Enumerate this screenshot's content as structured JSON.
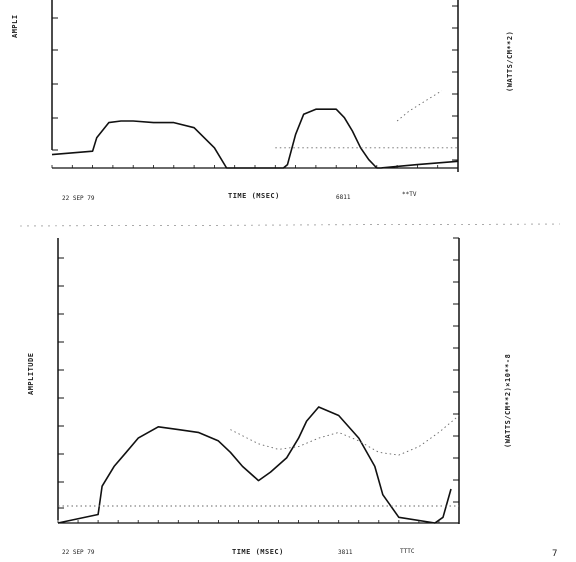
{
  "page_number": "7",
  "chart_data": [
    {
      "type": "line",
      "ylabel": "AMPLI",
      "ylabel_right": "(WATTS/CM**2)",
      "xlabel": "TIME (MSEC)",
      "date_label": "22 SEP 79",
      "extra_labels": [
        "6811",
        "**TV"
      ],
      "grid": false,
      "series": [
        {
          "style": "solid",
          "x": [
            0.0,
            0.1,
            0.11,
            0.14,
            0.17,
            0.2,
            0.25,
            0.3,
            0.35,
            0.4,
            0.43,
            0.46,
            0.5,
            0.57,
            0.58,
            0.6,
            0.62,
            0.65,
            0.7,
            0.72,
            0.74,
            0.76,
            0.78,
            0.8,
            0.81,
            0.9,
            1.0
          ],
          "y": [
            0.08,
            0.1,
            0.18,
            0.27,
            0.28,
            0.28,
            0.27,
            0.27,
            0.24,
            0.12,
            0.0,
            0.0,
            0.0,
            0.0,
            0.02,
            0.2,
            0.32,
            0.35,
            0.35,
            0.3,
            0.22,
            0.12,
            0.05,
            0.0,
            0.0,
            0.02,
            0.04
          ]
        },
        {
          "style": "dotted",
          "x": [
            0.55,
            0.6,
            0.65,
            0.7,
            0.75,
            0.8,
            0.85,
            0.9,
            0.95,
            1.0
          ],
          "y": [
            0.12,
            0.12,
            0.12,
            0.12,
            0.12,
            0.12,
            0.12,
            0.12,
            0.12,
            0.12
          ]
        },
        {
          "style": "dotted",
          "x": [
            0.85,
            0.88,
            0.92,
            0.96
          ],
          "y": [
            0.28,
            0.34,
            0.4,
            0.46
          ]
        }
      ]
    },
    {
      "type": "line",
      "ylabel": "AMPLITUDE",
      "ylabel_right": "(WATTS/CM**2)×10**-8",
      "xlabel": "TIME (MSEC)",
      "date_label": "22 SEP 79",
      "extra_labels": [
        "3811",
        "TTTC"
      ],
      "grid": false,
      "series": [
        {
          "style": "solid",
          "x": [
            0.0,
            0.1,
            0.11,
            0.14,
            0.17,
            0.2,
            0.25,
            0.3,
            0.35,
            0.4,
            0.43,
            0.46,
            0.5,
            0.53,
            0.57,
            0.6,
            0.62,
            0.65,
            0.7,
            0.75,
            0.79,
            0.81,
            0.85,
            0.94,
            0.96,
            0.98
          ],
          "y": [
            0.0,
            0.03,
            0.13,
            0.2,
            0.25,
            0.3,
            0.34,
            0.33,
            0.32,
            0.29,
            0.25,
            0.2,
            0.15,
            0.18,
            0.23,
            0.3,
            0.36,
            0.41,
            0.38,
            0.3,
            0.2,
            0.1,
            0.02,
            0.0,
            0.02,
            0.12
          ]
        },
        {
          "style": "dotted",
          "x": [
            0.43,
            0.5,
            0.55,
            0.6,
            0.65,
            0.7,
            0.75,
            0.8,
            0.85,
            0.9,
            0.95,
            1.0
          ],
          "y": [
            0.33,
            0.28,
            0.26,
            0.27,
            0.3,
            0.32,
            0.29,
            0.25,
            0.24,
            0.27,
            0.32,
            0.38
          ]
        },
        {
          "style": "dotted",
          "x": [
            0.0,
            0.2,
            0.4,
            0.6,
            0.8,
            1.0
          ],
          "y": [
            0.06,
            0.06,
            0.06,
            0.06,
            0.06,
            0.06
          ]
        }
      ]
    }
  ]
}
